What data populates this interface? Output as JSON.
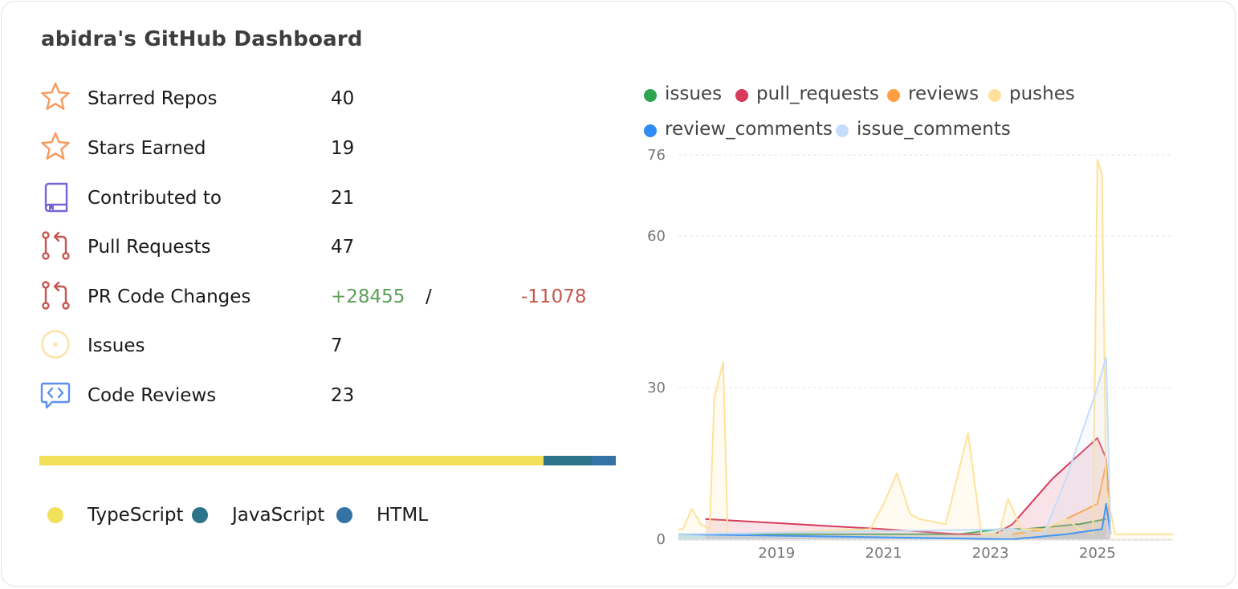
{
  "title": "abidra's GitHub Dashboard",
  "stats": [
    {
      "label": "Starred Repos",
      "value": "40",
      "icon": "star-icon"
    },
    {
      "label": "Stars Earned",
      "value": "19",
      "icon": "star-icon"
    },
    {
      "label": "Contributed to",
      "value": "21",
      "icon": "repo-icon"
    },
    {
      "label": "Pull Requests",
      "value": "47",
      "icon": "pull-request-icon"
    },
    {
      "label": "PR Code Changes",
      "additions": "+28455",
      "separator": "/",
      "deletions": "-11078",
      "icon": "pull-request-icon"
    },
    {
      "label": "Issues",
      "value": "7",
      "icon": "issue-icon"
    },
    {
      "label": "Code Reviews",
      "value": "23",
      "icon": "code-review-icon"
    }
  ],
  "languages": [
    {
      "name": "TypeScript",
      "color": "#f1e05a",
      "share": 0.874
    },
    {
      "name": "JavaScript",
      "color": "#2b7489",
      "share": 0.084
    },
    {
      "name": "HTML",
      "color": "#3572a5",
      "share": 0.042
    }
  ],
  "chart_data": {
    "type": "area",
    "x_type": "date",
    "xticks": [
      "2019",
      "2021",
      "2023",
      "2025"
    ],
    "yticks": [
      0,
      30,
      60,
      76
    ],
    "ylim": [
      0,
      76
    ],
    "xlim": [
      "2017-03-01",
      "2026-06-01"
    ],
    "grid": true,
    "legend_position": "top",
    "series": [
      {
        "name": "issues",
        "color": "#2ea44f",
        "points": [
          [
            "2017-03-01",
            1
          ],
          [
            "2017-06-01",
            1
          ],
          [
            "2018-06-01",
            1
          ],
          [
            "2021-03-01",
            1
          ],
          [
            "2022-06-01",
            1
          ],
          [
            "2023-03-01",
            2
          ],
          [
            "2023-09-01",
            2
          ],
          [
            "2024-09-01",
            3
          ],
          [
            "2025-03-01",
            4
          ]
        ]
      },
      {
        "name": "pull_requests",
        "color": "#d73a5a",
        "points": [
          [
            "2017-09-01",
            4
          ],
          [
            "2021-01-01",
            2
          ],
          [
            "2022-06-01",
            1
          ],
          [
            "2023-02-01",
            1
          ],
          [
            "2023-06-01",
            3
          ],
          [
            "2024-03-01",
            12
          ],
          [
            "2025-01-01",
            20
          ],
          [
            "2025-03-01",
            16
          ],
          [
            "2025-04-01",
            1
          ]
        ]
      },
      {
        "name": "reviews",
        "color": "#ff9f40",
        "points": [
          [
            "2023-06-01",
            1
          ],
          [
            "2024-01-01",
            2
          ],
          [
            "2024-06-01",
            4
          ],
          [
            "2025-01-01",
            7
          ],
          [
            "2025-03-01",
            15
          ],
          [
            "2025-04-01",
            1
          ]
        ]
      },
      {
        "name": "pushes",
        "color": "#ffe29a",
        "points": [
          [
            "2017-03-01",
            2
          ],
          [
            "2017-04-01",
            2
          ],
          [
            "2017-06-01",
            6
          ],
          [
            "2017-08-01",
            3
          ],
          [
            "2017-10-01",
            2
          ],
          [
            "2017-11-01",
            28
          ],
          [
            "2018-01-01",
            35
          ],
          [
            "2018-02-01",
            1
          ],
          [
            "2020-10-01",
            2
          ],
          [
            "2021-01-01",
            7
          ],
          [
            "2021-04-01",
            13
          ],
          [
            "2021-07-01",
            5
          ],
          [
            "2021-09-01",
            4
          ],
          [
            "2022-03-01",
            3
          ],
          [
            "2022-08-01",
            21
          ],
          [
            "2022-11-01",
            1
          ],
          [
            "2023-03-01",
            1
          ],
          [
            "2023-05-01",
            8
          ],
          [
            "2023-08-01",
            2
          ],
          [
            "2024-01-01",
            2
          ],
          [
            "2024-06-01",
            4
          ],
          [
            "2024-09-01",
            2
          ],
          [
            "2024-12-01",
            1
          ],
          [
            "2025-01-01",
            75
          ],
          [
            "2025-02-01",
            72
          ],
          [
            "2025-03-01",
            10
          ],
          [
            "2025-05-01",
            1
          ],
          [
            "2026-06-01",
            1
          ]
        ]
      },
      {
        "name": "review_comments",
        "color": "#2f8cf5",
        "points": [
          [
            "2017-03-01",
            1
          ],
          [
            "2023-06-01",
            0
          ],
          [
            "2024-06-01",
            1
          ],
          [
            "2025-02-01",
            2
          ],
          [
            "2025-03-01",
            7
          ],
          [
            "2025-04-01",
            1
          ]
        ]
      },
      {
        "name": "issue_comments",
        "color": "#c4ddfb",
        "points": [
          [
            "2017-03-01",
            1
          ],
          [
            "2023-06-01",
            2
          ],
          [
            "2024-01-01",
            1
          ],
          [
            "2024-06-01",
            12
          ],
          [
            "2025-01-01",
            30
          ],
          [
            "2025-03-01",
            36
          ],
          [
            "2025-04-01",
            1
          ]
        ]
      }
    ]
  }
}
